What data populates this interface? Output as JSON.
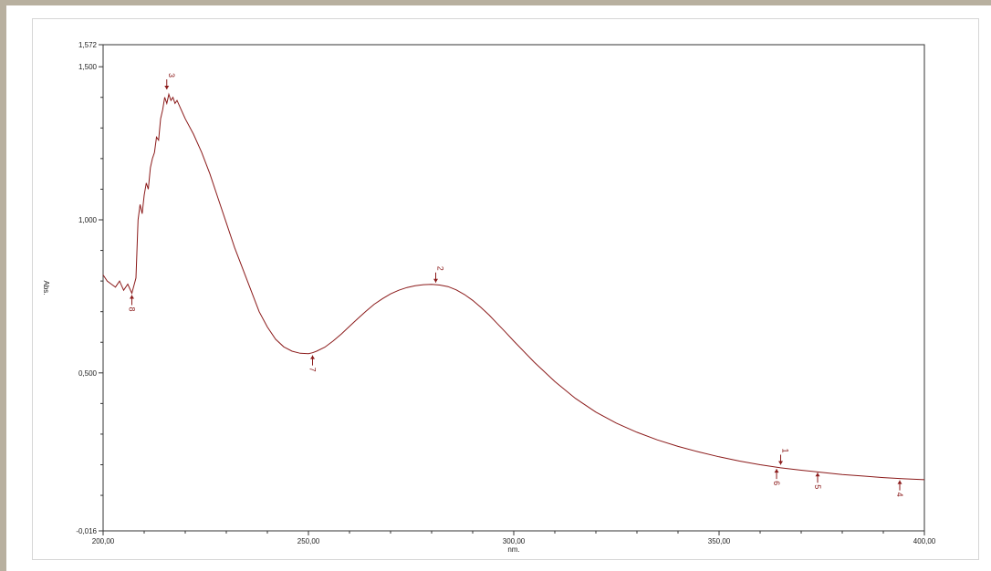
{
  "chart_data": {
    "type": "line",
    "xlabel": "nm.",
    "ylabel": "Abs.",
    "xlim": [
      200,
      400
    ],
    "ylim": [
      -0.016,
      1.572
    ],
    "x_ticks": [
      "200,00",
      "250,00",
      "300,00",
      "350,00",
      "400,00"
    ],
    "x_tick_values": [
      200,
      250,
      300,
      350,
      400
    ],
    "y_ticks": [
      "-0,016",
      "0,500",
      "1,000",
      "1,500",
      "1,572"
    ],
    "y_tick_values": [
      -0.016,
      0.5,
      1.0,
      1.5,
      1.572
    ],
    "grid": false,
    "colors": {
      "line": "#8b1a1a",
      "axis": "#333333"
    },
    "series": [
      {
        "x": [
          200,
          201,
          202,
          203,
          204,
          205,
          206,
          207,
          208,
          208.5,
          209,
          209.5,
          210,
          210.5,
          211,
          211.5,
          212,
          212.5,
          213,
          213.5,
          214,
          214.5,
          215,
          215.5,
          216,
          216.5,
          217,
          217.5,
          218,
          219,
          220,
          222,
          224,
          226,
          228,
          230,
          232,
          234,
          236,
          238,
          240,
          242,
          244,
          246,
          248,
          250,
          251,
          252,
          254,
          256,
          258,
          260,
          262,
          264,
          266,
          268,
          270,
          272,
          274,
          276,
          278,
          280,
          281,
          282,
          284,
          286,
          288,
          290,
          292,
          294,
          296,
          298,
          300,
          305,
          310,
          315,
          320,
          325,
          330,
          335,
          340,
          345,
          350,
          355,
          360,
          365,
          370,
          375,
          380,
          385,
          390,
          395,
          400
        ],
        "y": [
          0.82,
          0.8,
          0.79,
          0.78,
          0.8,
          0.77,
          0.79,
          0.76,
          0.81,
          1.0,
          1.05,
          1.02,
          1.08,
          1.12,
          1.1,
          1.17,
          1.2,
          1.22,
          1.27,
          1.26,
          1.33,
          1.36,
          1.4,
          1.38,
          1.41,
          1.39,
          1.4,
          1.38,
          1.39,
          1.36,
          1.33,
          1.28,
          1.22,
          1.15,
          1.07,
          0.99,
          0.91,
          0.84,
          0.77,
          0.7,
          0.65,
          0.61,
          0.585,
          0.571,
          0.564,
          0.563,
          0.566,
          0.571,
          0.584,
          0.604,
          0.627,
          0.652,
          0.677,
          0.701,
          0.724,
          0.742,
          0.758,
          0.77,
          0.779,
          0.785,
          0.788,
          0.789,
          0.788,
          0.787,
          0.782,
          0.771,
          0.756,
          0.737,
          0.714,
          0.689,
          0.661,
          0.633,
          0.604,
          0.535,
          0.472,
          0.417,
          0.372,
          0.336,
          0.306,
          0.281,
          0.26,
          0.242,
          0.226,
          0.212,
          0.2,
          0.19,
          0.182,
          0.175,
          0.168,
          0.163,
          0.158,
          0.154,
          0.151
        ]
      }
    ],
    "peaks": [
      {
        "label": "1",
        "x": 365,
        "y": 0.194,
        "dir": "down"
      },
      {
        "label": "2",
        "x": 281,
        "y": 0.789,
        "dir": "down"
      },
      {
        "label": "3",
        "x": 215.5,
        "y": 1.42,
        "dir": "down"
      },
      {
        "label": "4",
        "x": 394,
        "y": 0.155,
        "dir": "up"
      },
      {
        "label": "5",
        "x": 374,
        "y": 0.18,
        "dir": "up"
      },
      {
        "label": "6",
        "x": 364,
        "y": 0.192,
        "dir": "up"
      },
      {
        "label": "7",
        "x": 251,
        "y": 0.563,
        "dir": "up"
      },
      {
        "label": "8",
        "x": 207,
        "y": 0.76,
        "dir": "up"
      }
    ]
  }
}
